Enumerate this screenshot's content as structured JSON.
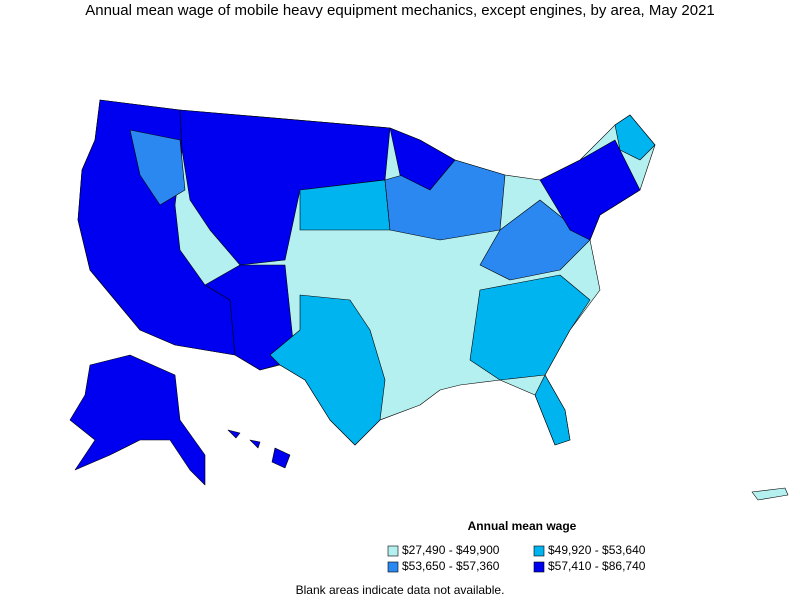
{
  "title": "Annual mean wage of mobile heavy equipment mechanics, except engines, by area, May 2021",
  "legend": {
    "title": "Annual mean wage",
    "items": [
      {
        "label": "$27,490 - $49,900",
        "color": "#b4f0f0"
      },
      {
        "label": "$49,920 - $53,640",
        "color": "#00b4f0"
      },
      {
        "label": "$53,650 - $57,360",
        "color": "#2a88f0"
      },
      {
        "label": "$57,410 - $86,740",
        "color": "#0000f0"
      }
    ]
  },
  "footnote": "Blank areas indicate data not available."
}
